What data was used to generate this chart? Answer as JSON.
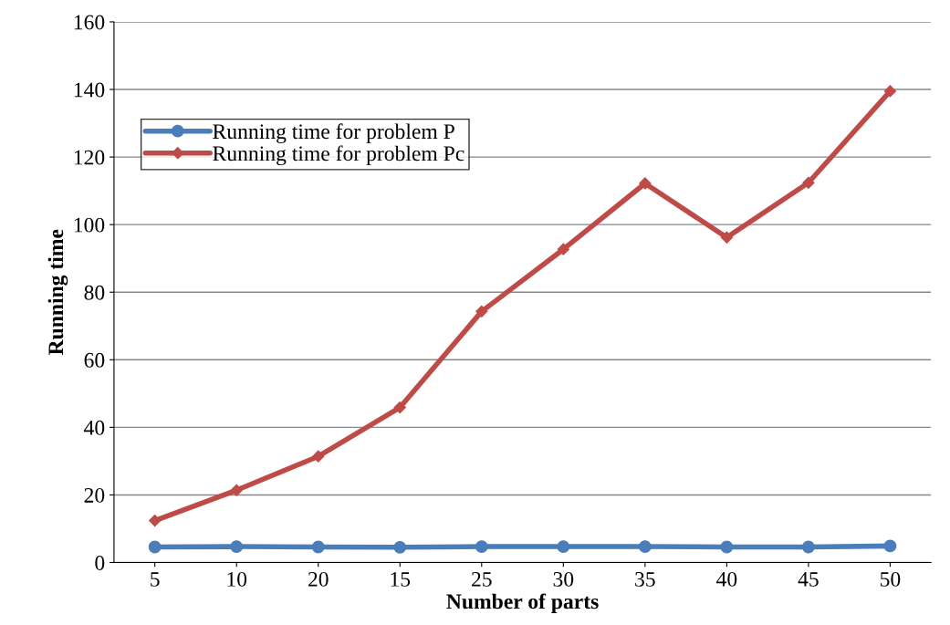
{
  "chart_data": {
    "type": "line",
    "xlabel": "Number of parts",
    "ylabel": "Running time",
    "categories": [
      "5",
      "10",
      "20",
      "15",
      "25",
      "30",
      "35",
      "40",
      "45",
      "50"
    ],
    "series": [
      {
        "name": "Running time for problem P",
        "color": "#4a7ebb",
        "marker": "circle",
        "values": [
          4.6,
          4.7,
          4.6,
          4.5,
          4.7,
          4.7,
          4.7,
          4.6,
          4.6,
          4.9
        ]
      },
      {
        "name": "Running time for problem Pc",
        "color": "#be4b48",
        "marker": "diamond",
        "values": [
          12.4,
          21.4,
          31.4,
          45.9,
          74.3,
          92.7,
          112.2,
          96.2,
          112.4,
          139.5
        ]
      }
    ],
    "ylim": [
      0,
      160
    ],
    "yticks": [
      0,
      20,
      40,
      60,
      80,
      100,
      120,
      140,
      160
    ],
    "grid": "y",
    "legend": "top left",
    "line_style": "solid"
  }
}
